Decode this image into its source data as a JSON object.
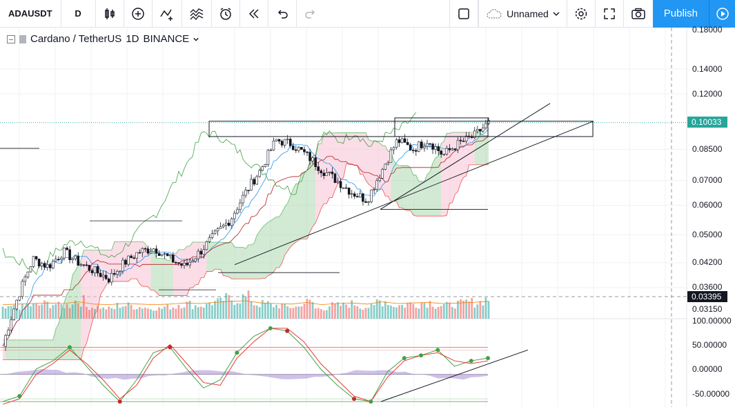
{
  "toolbar": {
    "symbol": "ADAUSDT",
    "interval": "D",
    "icons": [
      "bar-style-icon",
      "add-indicator-icon",
      "indicators-icon",
      "compare-icon",
      "alert-icon",
      "replay-icon",
      "undo-icon",
      "redo-icon"
    ],
    "layout_name": "Unnamed",
    "publish_label": "Publish"
  },
  "legend": {
    "pair": "Cardano / TetherUS",
    "interval": "1D",
    "exchange": "BINANCE"
  },
  "price_axis": {
    "labels": [
      "0.18000",
      "0.14000",
      "0.12000",
      "0.10033",
      "0.08500",
      "0.07000",
      "0.06000",
      "0.05000",
      "0.04200",
      "0.03600",
      "0.03395",
      "0.03150"
    ],
    "last_price": "0.10033",
    "crosshair_price": "0.03395"
  },
  "oscillator_axis": {
    "labels": [
      "100.00000",
      "50.00000",
      "0.00000",
      "-50.00000"
    ]
  },
  "colors": {
    "up": "#26a69a",
    "down": "#ef5350",
    "accent": "#2196f3",
    "kumo_bull": "#a5d6a7",
    "kumo_bear": "#f8bbd0"
  },
  "chart_data": {
    "type": "candlestick",
    "symbol": "ADAUSDT",
    "exchange": "BINANCE",
    "interval": "1D",
    "last_price": 0.10033,
    "ylim": [
      0.0315,
      0.18
    ],
    "log_scale": true,
    "close_trend": [
      0.025,
      0.034,
      0.043,
      0.041,
      0.045,
      0.042,
      0.04,
      0.038,
      0.042,
      0.045,
      0.046,
      0.043,
      0.041,
      0.045,
      0.05,
      0.055,
      0.065,
      0.075,
      0.09,
      0.088,
      0.082,
      0.075,
      0.07,
      0.065,
      0.062,
      0.075,
      0.09,
      0.085,
      0.09,
      0.082,
      0.088,
      0.092,
      0.1
    ],
    "volume_profile": [
      0.3,
      0.4,
      0.5,
      0.6,
      0.5,
      0.8,
      0.4,
      0.3,
      0.5,
      0.4,
      0.3,
      0.4,
      0.6,
      0.5,
      0.7,
      0.9,
      1.0,
      0.6,
      0.5,
      0.4,
      0.7,
      0.3,
      0.5,
      0.6,
      0.4,
      0.8,
      0.5,
      0.6,
      0.7,
      0.5,
      0.6,
      0.7,
      0.9
    ],
    "oscillator": {
      "ylim": [
        -60,
        100
      ],
      "levels": [
        50,
        0,
        -50
      ],
      "k": [
        -50,
        -40,
        10,
        25,
        50,
        15,
        -20,
        -50,
        -10,
        40,
        50,
        10,
        -25,
        -10,
        40,
        70,
        85,
        80,
        50,
        10,
        -20,
        -45,
        -50,
        5,
        30,
        35,
        45,
        15,
        25,
        30
      ],
      "d": [
        -55,
        -45,
        0,
        20,
        45,
        20,
        -10,
        -45,
        -20,
        30,
        55,
        20,
        -15,
        -20,
        30,
        60,
        85,
        85,
        60,
        20,
        -10,
        -40,
        -50,
        -5,
        25,
        35,
        40,
        25,
        20,
        25
      ]
    }
  }
}
